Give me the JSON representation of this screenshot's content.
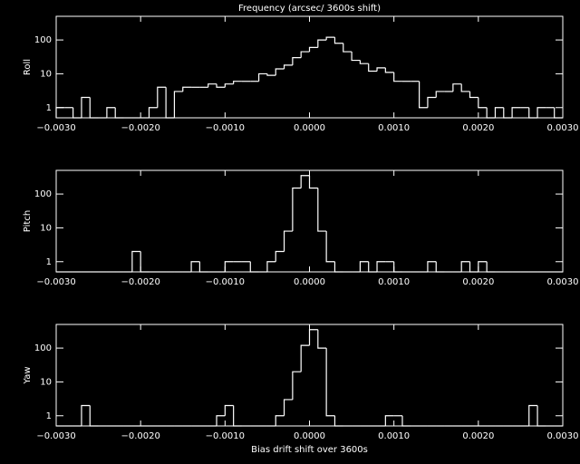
{
  "chart_data": [
    {
      "type": "histogram",
      "title": "Frequency (arcsec/ 3600s shift)",
      "y_label": "Roll",
      "log_y": true,
      "color": "#ffffff",
      "bins": [
        -0.003,
        -0.0029,
        -0.0028,
        -0.0027,
        -0.0026,
        -0.0025,
        -0.0024,
        -0.0023,
        -0.0022,
        -0.0021,
        -0.002,
        -0.0019,
        -0.0018,
        -0.0017,
        -0.0016,
        -0.0015,
        -0.0014,
        -0.0013,
        -0.0012,
        -0.0011,
        -0.001,
        -0.0009,
        -0.0008,
        -0.0007,
        -0.0006,
        -0.0005,
        -0.0004,
        -0.0003,
        -0.0002,
        -0.0001,
        0,
        0.0001,
        0.0002,
        0.0003,
        0.0004,
        0.0005,
        0.0006,
        0.0007,
        0.0008,
        0.0009,
        0.001,
        0.0011,
        0.0012,
        0.0013,
        0.0014,
        0.0015,
        0.0016,
        0.0017,
        0.0018,
        0.0019,
        0.002,
        0.0021,
        0.0022,
        0.0023,
        0.0024,
        0.0025,
        0.0026,
        0.0027,
        0.0028,
        0.0029,
        0.003
      ],
      "counts": [
        1,
        1,
        0,
        2,
        0,
        0,
        1,
        0,
        0,
        0,
        0,
        1,
        4,
        0,
        3,
        4,
        4,
        4,
        5,
        4,
        5,
        6,
        6,
        6,
        10,
        9,
        14,
        18,
        30,
        45,
        60,
        100,
        120,
        80,
        45,
        25,
        20,
        12,
        15,
        11,
        6,
        6,
        6,
        1,
        2,
        3,
        3,
        5,
        3,
        2,
        1,
        0,
        1,
        0,
        1,
        1,
        0,
        1,
        1,
        0
      ],
      "xlim": [
        -0.003,
        0.003
      ],
      "ylim": [
        0.5,
        500
      ],
      "xticks": [
        {
          "value": -0.003,
          "label": "−0.0030"
        },
        {
          "value": -0.002,
          "label": "−0.0020"
        },
        {
          "value": -0.001,
          "label": "−0.0010"
        },
        {
          "value": 0,
          "label": "0.0000"
        },
        {
          "value": 0.001,
          "label": "0.0010"
        },
        {
          "value": 0.002,
          "label": "0.0020"
        },
        {
          "value": 0.003,
          "label": "0.0030"
        }
      ],
      "yticks": [
        1,
        10,
        100
      ]
    },
    {
      "type": "histogram",
      "y_label": "Pitch",
      "log_y": true,
      "color": "#ffffff",
      "bins": [
        -0.003,
        -0.0029,
        -0.0028,
        -0.0027,
        -0.0026,
        -0.0025,
        -0.0024,
        -0.0023,
        -0.0022,
        -0.0021,
        -0.002,
        -0.0019,
        -0.0018,
        -0.0017,
        -0.0016,
        -0.0015,
        -0.0014,
        -0.0013,
        -0.0012,
        -0.0011,
        -0.001,
        -0.0009,
        -0.0008,
        -0.0007,
        -0.0006,
        -0.0005,
        -0.0004,
        -0.0003,
        -0.0002,
        -0.0001,
        0,
        0.0001,
        0.0002,
        0.0003,
        0.0004,
        0.0005,
        0.0006,
        0.0007,
        0.0008,
        0.0009,
        0.001,
        0.0011,
        0.0012,
        0.0013,
        0.0014,
        0.0015,
        0.0016,
        0.0017,
        0.0018,
        0.0019,
        0.002,
        0.0021,
        0.0022,
        0.0023,
        0.0024,
        0.0025,
        0.0026,
        0.0027,
        0.0028,
        0.0029,
        0.003
      ],
      "counts": [
        0,
        0,
        0,
        0,
        0,
        0,
        0,
        0,
        0,
        2,
        0,
        0,
        0,
        0,
        0,
        0,
        1,
        0,
        0,
        0,
        1,
        1,
        1,
        0,
        0,
        1,
        2,
        8,
        150,
        350,
        150,
        8,
        1,
        0,
        0,
        0,
        1,
        0,
        1,
        1,
        0,
        0,
        0,
        0,
        1,
        0,
        0,
        0,
        1,
        0,
        1,
        0,
        0,
        0,
        0,
        0,
        0,
        0,
        0,
        0
      ],
      "xlim": [
        -0.003,
        0.003
      ],
      "ylim": [
        0.5,
        500
      ],
      "xticks": [
        {
          "value": -0.003,
          "label": "−0.0030"
        },
        {
          "value": -0.002,
          "label": "−0.0020"
        },
        {
          "value": -0.001,
          "label": "−0.0010"
        },
        {
          "value": 0,
          "label": "0.0000"
        },
        {
          "value": 0.001,
          "label": "0.0010"
        },
        {
          "value": 0.002,
          "label": "0.0020"
        },
        {
          "value": 0.003,
          "label": "0.0030"
        }
      ],
      "yticks": [
        1,
        10,
        100
      ]
    },
    {
      "type": "histogram",
      "y_label": "Yaw",
      "x_label": "Bias drift shift over 3600s",
      "log_y": true,
      "color": "#ffffff",
      "bins": [
        -0.003,
        -0.0029,
        -0.0028,
        -0.0027,
        -0.0026,
        -0.0025,
        -0.0024,
        -0.0023,
        -0.0022,
        -0.0021,
        -0.002,
        -0.0019,
        -0.0018,
        -0.0017,
        -0.0016,
        -0.0015,
        -0.0014,
        -0.0013,
        -0.0012,
        -0.0011,
        -0.001,
        -0.0009,
        -0.0008,
        -0.0007,
        -0.0006,
        -0.0005,
        -0.0004,
        -0.0003,
        -0.0002,
        -0.0001,
        0,
        0.0001,
        0.0002,
        0.0003,
        0.0004,
        0.0005,
        0.0006,
        0.0007,
        0.0008,
        0.0009,
        0.001,
        0.0011,
        0.0012,
        0.0013,
        0.0014,
        0.0015,
        0.0016,
        0.0017,
        0.0018,
        0.0019,
        0.002,
        0.0021,
        0.0022,
        0.0023,
        0.0024,
        0.0025,
        0.0026,
        0.0027,
        0.0028,
        0.0029,
        0.003
      ],
      "counts": [
        0,
        0,
        0,
        2,
        0,
        0,
        0,
        0,
        0,
        0,
        0,
        0,
        0,
        0,
        0,
        0,
        0,
        0,
        0,
        1,
        2,
        0,
        0,
        0,
        0,
        0,
        1,
        3,
        20,
        120,
        350,
        100,
        1,
        0,
        0,
        0,
        0,
        0,
        0,
        1,
        1,
        0,
        0,
        0,
        0,
        0,
        0,
        0,
        0,
        0,
        0,
        0,
        0,
        0,
        0,
        0,
        2,
        0,
        0,
        0
      ],
      "xlim": [
        -0.003,
        0.003
      ],
      "ylim": [
        0.5,
        500
      ],
      "xticks": [
        {
          "value": -0.003,
          "label": "−0.0030"
        },
        {
          "value": -0.002,
          "label": "−0.0020"
        },
        {
          "value": -0.001,
          "label": "−0.0010"
        },
        {
          "value": 0,
          "label": "0.0000"
        },
        {
          "value": 0.001,
          "label": "0.0010"
        },
        {
          "value": 0.002,
          "label": "0.0020"
        },
        {
          "value": 0.003,
          "label": "0.0030"
        }
      ],
      "yticks": [
        1,
        10,
        100
      ]
    }
  ]
}
